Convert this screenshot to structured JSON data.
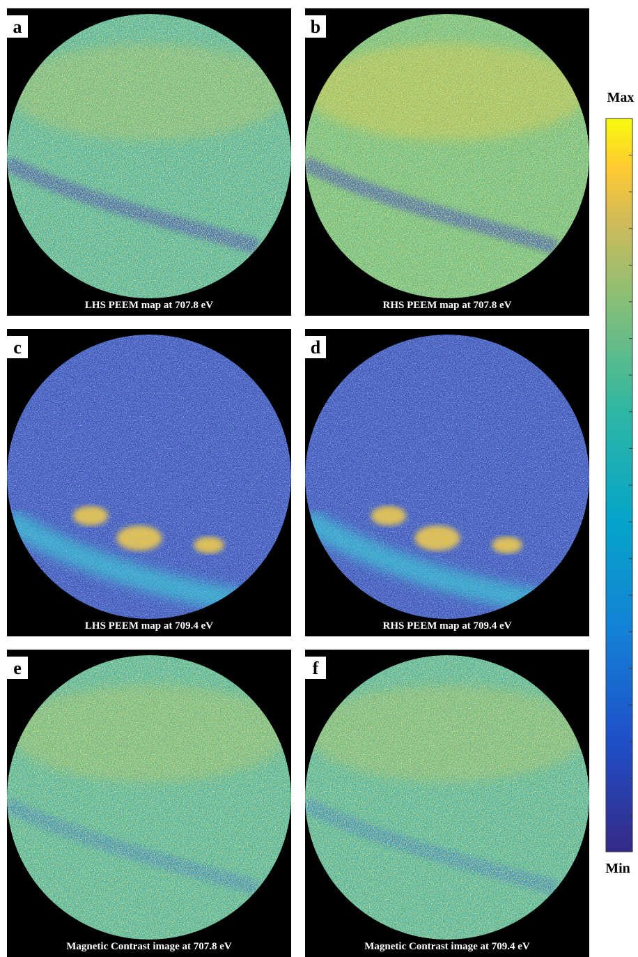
{
  "panels": [
    {
      "label": "a",
      "caption": "LHS PEEM map at 707.8 eV"
    },
    {
      "label": "b",
      "caption": "RHS PEEM map at 707.8 eV"
    },
    {
      "label": "c",
      "caption": "LHS PEEM map at 709.4 eV"
    },
    {
      "label": "d",
      "caption": "RHS PEEM map at 709.4 eV"
    },
    {
      "label": "e",
      "caption": "Magnetic Contrast image at 707.8 eV"
    },
    {
      "label": "f",
      "caption": "Magnetic Contrast image at 709.4 eV"
    }
  ],
  "colorbar": {
    "max_label": "Max",
    "min_label": "Min"
  }
}
